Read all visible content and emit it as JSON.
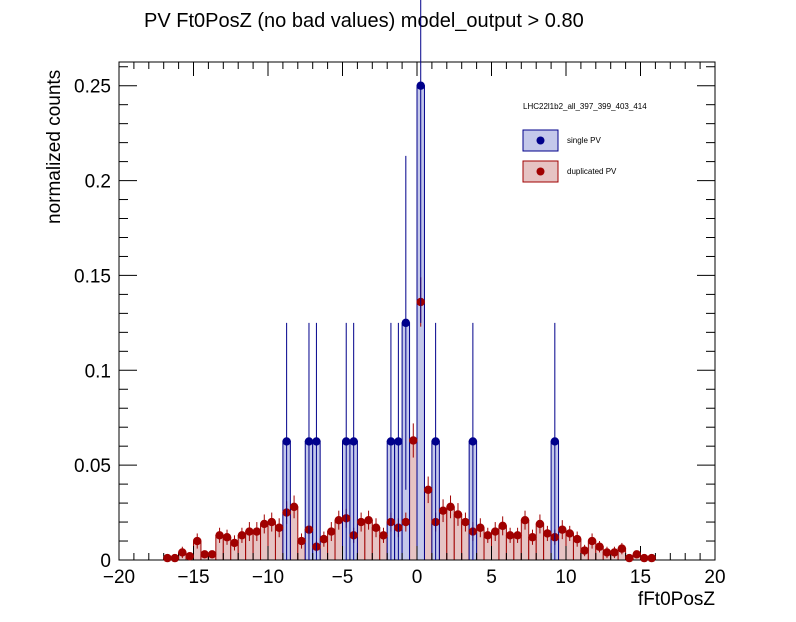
{
  "chart_data": {
    "type": "bar",
    "title": "PV Ft0PosZ (no bad values)  model_output > 0.80",
    "xlabel": "fFt0PosZ",
    "ylabel": "normalized counts",
    "xlim": [
      -20,
      20
    ],
    "ylim": [
      0,
      0.2625
    ],
    "x_ticks": [
      -20,
      -15,
      -10,
      -5,
      0,
      5,
      10,
      15,
      20
    ],
    "x_tick_labels": [
      "−20",
      "−15",
      "−10",
      "−5",
      "0",
      "5",
      "10",
      "15",
      "20"
    ],
    "y_ticks": [
      0,
      0.05,
      0.1,
      0.15,
      0.2,
      0.25
    ],
    "y_tick_labels": [
      "0",
      "0.05",
      "0.1",
      "0.15",
      "0.2",
      "0.25"
    ],
    "bin_width": 0.5,
    "legend": {
      "header": "LHC22l1b2_all_397_399_403_414",
      "placement": "top-right"
    },
    "series": [
      {
        "name": "single PV",
        "color": "#00008b",
        "fill": "#c4c8ea",
        "points": [
          {
            "x": -8.75,
            "y": 0.0625,
            "err": 0.0625
          },
          {
            "x": -7.25,
            "y": 0.0625,
            "err": 0.0625
          },
          {
            "x": -6.75,
            "y": 0.0625,
            "err": 0.0625
          },
          {
            "x": -4.75,
            "y": 0.0625,
            "err": 0.0625
          },
          {
            "x": -4.25,
            "y": 0.0625,
            "err": 0.0625
          },
          {
            "x": -1.75,
            "y": 0.0625,
            "err": 0.0625
          },
          {
            "x": -1.25,
            "y": 0.0625,
            "err": 0.0625
          },
          {
            "x": -0.75,
            "y": 0.125,
            "err": 0.088
          },
          {
            "x": 0.25,
            "y": 0.25,
            "err": 0.125
          },
          {
            "x": 1.25,
            "y": 0.0625,
            "err": 0.0625
          },
          {
            "x": 3.75,
            "y": 0.0625,
            "err": 0.0625
          },
          {
            "x": 9.25,
            "y": 0.0625,
            "err": 0.0625
          }
        ]
      },
      {
        "name": "duplicated PV",
        "color": "#a00000",
        "fill": "#e6c3c3",
        "points": [
          {
            "x": -16.75,
            "y": 0.001,
            "err": 0.002
          },
          {
            "x": -16.25,
            "y": 0.001,
            "err": 0.002
          },
          {
            "x": -15.75,
            "y": 0.004,
            "err": 0.003
          },
          {
            "x": -15.25,
            "y": 0.002,
            "err": 0.002
          },
          {
            "x": -14.75,
            "y": 0.01,
            "err": 0.004
          },
          {
            "x": -14.25,
            "y": 0.003,
            "err": 0.002
          },
          {
            "x": -13.75,
            "y": 0.003,
            "err": 0.002
          },
          {
            "x": -13.25,
            "y": 0.013,
            "err": 0.004
          },
          {
            "x": -12.75,
            "y": 0.012,
            "err": 0.004
          },
          {
            "x": -12.25,
            "y": 0.009,
            "err": 0.004
          },
          {
            "x": -11.75,
            "y": 0.013,
            "err": 0.004
          },
          {
            "x": -11.25,
            "y": 0.015,
            "err": 0.005
          },
          {
            "x": -10.75,
            "y": 0.015,
            "err": 0.005
          },
          {
            "x": -10.25,
            "y": 0.019,
            "err": 0.005
          },
          {
            "x": -9.75,
            "y": 0.02,
            "err": 0.005
          },
          {
            "x": -9.25,
            "y": 0.017,
            "err": 0.005
          },
          {
            "x": -8.75,
            "y": 0.025,
            "err": 0.006
          },
          {
            "x": -8.25,
            "y": 0.028,
            "err": 0.006
          },
          {
            "x": -7.75,
            "y": 0.01,
            "err": 0.004
          },
          {
            "x": -7.25,
            "y": 0.016,
            "err": 0.005
          },
          {
            "x": -6.75,
            "y": 0.007,
            "err": 0.003
          },
          {
            "x": -6.25,
            "y": 0.011,
            "err": 0.004
          },
          {
            "x": -5.75,
            "y": 0.015,
            "err": 0.005
          },
          {
            "x": -5.25,
            "y": 0.021,
            "err": 0.005
          },
          {
            "x": -4.75,
            "y": 0.022,
            "err": 0.005
          },
          {
            "x": -4.25,
            "y": 0.013,
            "err": 0.004
          },
          {
            "x": -3.75,
            "y": 0.02,
            "err": 0.005
          },
          {
            "x": -3.25,
            "y": 0.021,
            "err": 0.005
          },
          {
            "x": -2.75,
            "y": 0.017,
            "err": 0.005
          },
          {
            "x": -2.25,
            "y": 0.013,
            "err": 0.004
          },
          {
            "x": -1.75,
            "y": 0.02,
            "err": 0.005
          },
          {
            "x": -1.25,
            "y": 0.017,
            "err": 0.005
          },
          {
            "x": -0.75,
            "y": 0.02,
            "err": 0.005
          },
          {
            "x": -0.25,
            "y": 0.063,
            "err": 0.009
          },
          {
            "x": 0.25,
            "y": 0.136,
            "err": 0.013
          },
          {
            "x": 0.75,
            "y": 0.037,
            "err": 0.007
          },
          {
            "x": 1.25,
            "y": 0.02,
            "err": 0.005
          },
          {
            "x": 1.75,
            "y": 0.026,
            "err": 0.006
          },
          {
            "x": 2.25,
            "y": 0.028,
            "err": 0.006
          },
          {
            "x": 2.75,
            "y": 0.024,
            "err": 0.006
          },
          {
            "x": 3.25,
            "y": 0.02,
            "err": 0.005
          },
          {
            "x": 3.75,
            "y": 0.015,
            "err": 0.005
          },
          {
            "x": 4.25,
            "y": 0.017,
            "err": 0.005
          },
          {
            "x": 4.75,
            "y": 0.013,
            "err": 0.004
          },
          {
            "x": 5.25,
            "y": 0.015,
            "err": 0.005
          },
          {
            "x": 5.75,
            "y": 0.018,
            "err": 0.005
          },
          {
            "x": 6.25,
            "y": 0.013,
            "err": 0.004
          },
          {
            "x": 6.75,
            "y": 0.013,
            "err": 0.004
          },
          {
            "x": 7.25,
            "y": 0.021,
            "err": 0.005
          },
          {
            "x": 7.75,
            "y": 0.012,
            "err": 0.004
          },
          {
            "x": 8.25,
            "y": 0.019,
            "err": 0.005
          },
          {
            "x": 8.75,
            "y": 0.014,
            "err": 0.004
          },
          {
            "x": 9.25,
            "y": 0.012,
            "err": 0.004
          },
          {
            "x": 9.75,
            "y": 0.016,
            "err": 0.005
          },
          {
            "x": 10.25,
            "y": 0.014,
            "err": 0.004
          },
          {
            "x": 10.75,
            "y": 0.011,
            "err": 0.004
          },
          {
            "x": 11.25,
            "y": 0.005,
            "err": 0.003
          },
          {
            "x": 11.75,
            "y": 0.01,
            "err": 0.004
          },
          {
            "x": 12.25,
            "y": 0.007,
            "err": 0.003
          },
          {
            "x": 12.75,
            "y": 0.004,
            "err": 0.003
          },
          {
            "x": 13.25,
            "y": 0.004,
            "err": 0.003
          },
          {
            "x": 13.75,
            "y": 0.006,
            "err": 0.003
          },
          {
            "x": 14.25,
            "y": 0.001,
            "err": 0.002
          },
          {
            "x": 14.75,
            "y": 0.003,
            "err": 0.002
          },
          {
            "x": 15.25,
            "y": 0.001,
            "err": 0.002
          },
          {
            "x": 15.75,
            "y": 0.001,
            "err": 0.002
          }
        ]
      }
    ]
  }
}
